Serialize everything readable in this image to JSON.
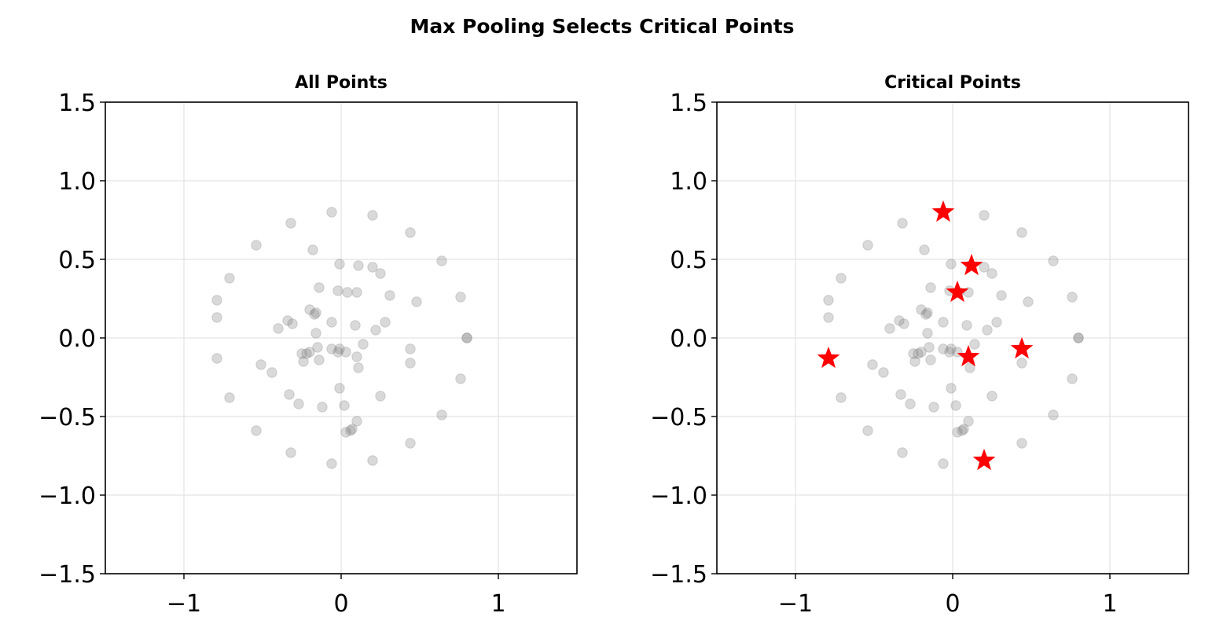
{
  "suptitle": "Max Pooling Selects Critical Points",
  "chart_data": [
    {
      "type": "scatter",
      "title": "All Points",
      "xlim": [
        -1.5,
        1.5
      ],
      "ylim": [
        -1.5,
        1.5
      ],
      "xticks": [
        -1,
        0,
        1
      ],
      "xtick_labels": [
        "−1",
        "0",
        "1"
      ],
      "yticks": [
        1.5,
        1.0,
        0.5,
        0.0,
        -0.5,
        -1.0,
        -1.5
      ],
      "ytick_labels": [
        "1.5",
        "1.0",
        "0.5",
        "0.0",
        "−0.5",
        "−1.0",
        "−1.5"
      ],
      "grid": true,
      "series": [
        {
          "marker": "circle",
          "color": "#808080",
          "points": [
            [
              -0.06,
              0.8
            ],
            [
              0.2,
              0.78
            ],
            [
              -0.32,
              0.73
            ],
            [
              0.44,
              0.67
            ],
            [
              -0.54,
              0.59
            ],
            [
              -0.18,
              0.56
            ],
            [
              0.64,
              0.49
            ],
            [
              -0.01,
              0.47
            ],
            [
              0.11,
              0.46
            ],
            [
              0.2,
              0.45
            ],
            [
              0.25,
              0.41
            ],
            [
              -0.71,
              0.38
            ],
            [
              -0.14,
              0.32
            ],
            [
              -0.02,
              0.3
            ],
            [
              0.04,
              0.29
            ],
            [
              0.1,
              0.29
            ],
            [
              0.31,
              0.27
            ],
            [
              0.76,
              0.26
            ],
            [
              -0.79,
              0.24
            ],
            [
              0.48,
              0.23
            ],
            [
              -0.2,
              0.18
            ],
            [
              -0.16,
              0.16
            ],
            [
              -0.17,
              0.15
            ],
            [
              -0.79,
              0.13
            ],
            [
              -0.34,
              0.11
            ],
            [
              -0.06,
              0.1
            ],
            [
              0.28,
              0.1
            ],
            [
              -0.31,
              0.09
            ],
            [
              0.09,
              0.08
            ],
            [
              -0.4,
              0.06
            ],
            [
              0.22,
              0.05
            ],
            [
              -0.16,
              0.03
            ],
            [
              0.8,
              0.0
            ],
            [
              0.8,
              0.0
            ],
            [
              0.14,
              -0.04
            ],
            [
              -0.15,
              -0.06
            ],
            [
              -0.06,
              -0.07
            ],
            [
              0.44,
              -0.07
            ],
            [
              -0.01,
              -0.07
            ],
            [
              -0.2,
              -0.09
            ],
            [
              0.03,
              -0.09
            ],
            [
              -0.02,
              -0.09
            ],
            [
              -0.25,
              -0.1
            ],
            [
              -0.22,
              -0.1
            ],
            [
              0.1,
              -0.12
            ],
            [
              -0.79,
              -0.13
            ],
            [
              -0.14,
              -0.14
            ],
            [
              -0.24,
              -0.15
            ],
            [
              0.44,
              -0.16
            ],
            [
              -0.51,
              -0.17
            ],
            [
              0.11,
              -0.19
            ],
            [
              -0.44,
              -0.22
            ],
            [
              0.76,
              -0.26
            ],
            [
              -0.01,
              -0.32
            ],
            [
              -0.33,
              -0.36
            ],
            [
              0.25,
              -0.37
            ],
            [
              -0.71,
              -0.38
            ],
            [
              -0.27,
              -0.42
            ],
            [
              0.02,
              -0.43
            ],
            [
              -0.12,
              -0.44
            ],
            [
              0.64,
              -0.49
            ],
            [
              0.1,
              -0.53
            ],
            [
              -0.54,
              -0.59
            ],
            [
              0.07,
              -0.58
            ],
            [
              0.06,
              -0.59
            ],
            [
              0.03,
              -0.6
            ],
            [
              -0.32,
              -0.73
            ],
            [
              0.44,
              -0.67
            ],
            [
              0.2,
              -0.78
            ],
            [
              -0.06,
              -0.8
            ]
          ]
        }
      ]
    },
    {
      "type": "scatter",
      "title": "Critical Points",
      "xlim": [
        -1.5,
        1.5
      ],
      "ylim": [
        -1.5,
        1.5
      ],
      "xticks": [
        -1,
        0,
        1
      ],
      "xtick_labels": [
        "−1",
        "0",
        "1"
      ],
      "yticks": [
        1.5,
        1.0,
        0.5,
        0.0,
        -0.5,
        -1.0,
        -1.5
      ],
      "ytick_labels": [
        "1.5",
        "1.0",
        "0.5",
        "0.0",
        "−0.5",
        "−1.0",
        "−1.5"
      ],
      "grid": true,
      "series": [
        {
          "marker": "circle",
          "color": "#808080",
          "points": [
            [
              -0.06,
              0.8
            ],
            [
              0.2,
              0.78
            ],
            [
              -0.32,
              0.73
            ],
            [
              0.44,
              0.67
            ],
            [
              -0.54,
              0.59
            ],
            [
              -0.18,
              0.56
            ],
            [
              0.64,
              0.49
            ],
            [
              -0.01,
              0.47
            ],
            [
              0.11,
              0.46
            ],
            [
              0.2,
              0.45
            ],
            [
              0.25,
              0.41
            ],
            [
              -0.71,
              0.38
            ],
            [
              -0.14,
              0.32
            ],
            [
              -0.02,
              0.3
            ],
            [
              0.04,
              0.29
            ],
            [
              0.1,
              0.29
            ],
            [
              0.31,
              0.27
            ],
            [
              0.76,
              0.26
            ],
            [
              -0.79,
              0.24
            ],
            [
              0.48,
              0.23
            ],
            [
              -0.2,
              0.18
            ],
            [
              -0.16,
              0.16
            ],
            [
              -0.17,
              0.15
            ],
            [
              -0.79,
              0.13
            ],
            [
              -0.34,
              0.11
            ],
            [
              -0.06,
              0.1
            ],
            [
              0.28,
              0.1
            ],
            [
              -0.31,
              0.09
            ],
            [
              0.09,
              0.08
            ],
            [
              -0.4,
              0.06
            ],
            [
              0.22,
              0.05
            ],
            [
              -0.16,
              0.03
            ],
            [
              0.8,
              0.0
            ],
            [
              0.8,
              0.0
            ],
            [
              0.14,
              -0.04
            ],
            [
              -0.15,
              -0.06
            ],
            [
              -0.06,
              -0.07
            ],
            [
              0.44,
              -0.07
            ],
            [
              -0.01,
              -0.07
            ],
            [
              -0.2,
              -0.09
            ],
            [
              0.03,
              -0.09
            ],
            [
              -0.02,
              -0.09
            ],
            [
              -0.25,
              -0.1
            ],
            [
              -0.22,
              -0.1
            ],
            [
              0.1,
              -0.12
            ],
            [
              -0.79,
              -0.13
            ],
            [
              -0.14,
              -0.14
            ],
            [
              -0.24,
              -0.15
            ],
            [
              0.44,
              -0.16
            ],
            [
              -0.51,
              -0.17
            ],
            [
              0.11,
              -0.19
            ],
            [
              -0.44,
              -0.22
            ],
            [
              0.76,
              -0.26
            ],
            [
              -0.01,
              -0.32
            ],
            [
              -0.33,
              -0.36
            ],
            [
              0.25,
              -0.37
            ],
            [
              -0.71,
              -0.38
            ],
            [
              -0.27,
              -0.42
            ],
            [
              0.02,
              -0.43
            ],
            [
              -0.12,
              -0.44
            ],
            [
              0.64,
              -0.49
            ],
            [
              0.1,
              -0.53
            ],
            [
              -0.54,
              -0.59
            ],
            [
              0.07,
              -0.58
            ],
            [
              0.06,
              -0.59
            ],
            [
              0.03,
              -0.6
            ],
            [
              -0.32,
              -0.73
            ],
            [
              0.44,
              -0.67
            ],
            [
              0.2,
              -0.78
            ],
            [
              -0.06,
              -0.8
            ]
          ]
        },
        {
          "marker": "star",
          "color": "#ff0000",
          "points": [
            [
              -0.06,
              0.8
            ],
            [
              0.12,
              0.46
            ],
            [
              0.03,
              0.29
            ],
            [
              0.44,
              -0.07
            ],
            [
              0.1,
              -0.12
            ],
            [
              -0.79,
              -0.13
            ],
            [
              0.2,
              -0.78
            ]
          ]
        }
      ]
    }
  ]
}
